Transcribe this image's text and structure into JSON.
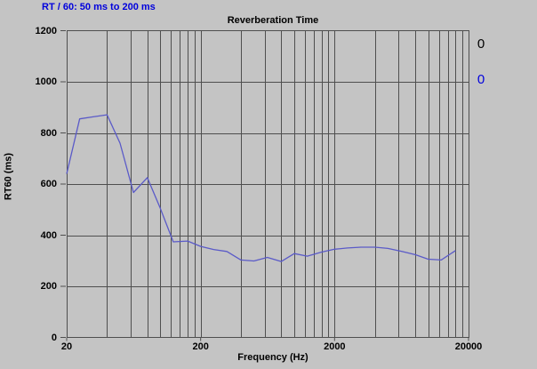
{
  "page": {
    "background": "#c4c4c4"
  },
  "header": {
    "title": "RT / 60: 50 ms to 200 ms",
    "color": "#0000dd"
  },
  "side_markers": {
    "black": {
      "text": "0",
      "color": "#000000"
    },
    "blue": {
      "text": "0",
      "color": "#0000dd"
    }
  },
  "chart_data": {
    "type": "line",
    "title": "Reverberation Time",
    "xlabel": "Frequency (Hz)",
    "ylabel": "RT60 (ms)",
    "x_scale": "log",
    "xlim": [
      20,
      20000
    ],
    "ylim": [
      0,
      1200
    ],
    "x_ticks": [
      20,
      200,
      2000,
      20000
    ],
    "y_ticks": [
      0,
      200,
      400,
      600,
      800,
      1000,
      1200
    ],
    "x_gridlines": [
      20,
      40,
      60,
      80,
      100,
      120,
      140,
      160,
      180,
      200,
      400,
      600,
      800,
      1000,
      1200,
      1400,
      1600,
      1800,
      2000,
      4000,
      6000,
      8000,
      10000,
      12000,
      14000,
      16000,
      18000,
      20000
    ],
    "grid_on": true,
    "legend": "none",
    "grid_color": "#4f4f4f",
    "line_color": "#5a5ac8",
    "series": [
      {
        "name": "RT60",
        "x": [
          20,
          25,
          31.5,
          40,
          50,
          63,
          80,
          100,
          125,
          160,
          200,
          250,
          315,
          400,
          500,
          630,
          800,
          1000,
          1250,
          1600,
          2000,
          2500,
          3150,
          4000,
          5000,
          6300,
          8000,
          10000,
          12500,
          16000
        ],
        "y": [
          640,
          855,
          863,
          871,
          760,
          567,
          625,
          505,
          374,
          377,
          356,
          344,
          336,
          303,
          299,
          313,
          297,
          328,
          318,
          334,
          345,
          350,
          353,
          353,
          348,
          337,
          324,
          306,
          303,
          340
        ]
      }
    ]
  }
}
